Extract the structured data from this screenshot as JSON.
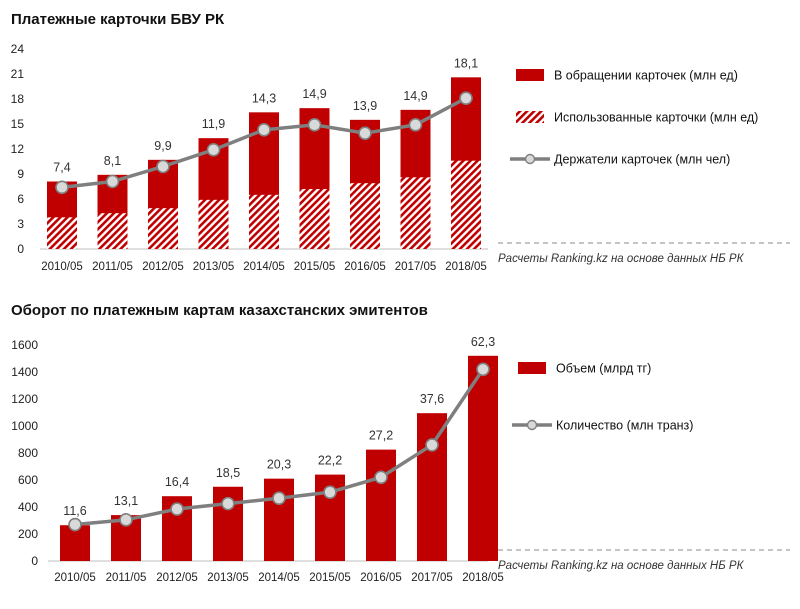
{
  "chart_data": [
    {
      "type": "bar",
      "title": "Платежные карточки БВУ РК",
      "categories": [
        "2010/05",
        "2011/05",
        "2012/05",
        "2013/05",
        "2014/05",
        "2015/05",
        "2016/05",
        "2017/05",
        "2018/05"
      ],
      "ylim": [
        0,
        24
      ],
      "yticks": [
        0,
        3,
        6,
        9,
        12,
        15,
        18,
        21,
        24
      ],
      "series": [
        {
          "name": "В обращении карточек (млн ед)",
          "kind": "bar",
          "color": "#c00000",
          "values": [
            8.1,
            8.9,
            10.7,
            13.3,
            16.4,
            16.9,
            15.5,
            16.7,
            20.6
          ]
        },
        {
          "name": "Использованные карточки (млн ед)",
          "kind": "bar-hatched",
          "color": "#c00000",
          "values": [
            3.8,
            4.3,
            4.9,
            5.9,
            6.5,
            7.2,
            7.9,
            8.6,
            10.6
          ]
        },
        {
          "name": "Держатели карточек (млн чел)",
          "kind": "line",
          "color": "#7f7f7f",
          "values": [
            7.4,
            8.1,
            9.9,
            11.9,
            14.3,
            14.9,
            13.9,
            14.9,
            18.1
          ]
        }
      ],
      "data_labels": [
        "7,4",
        "8,1",
        "9,9",
        "11,9",
        "14,3",
        "14,9",
        "13,9",
        "14,9",
        "18,1"
      ],
      "source": "Расчеты Ranking.kz на основе данных  НБ РК"
    },
    {
      "type": "bar",
      "title": "Оборот по платежным  картам казахстанских эмитентов",
      "categories": [
        "2010/05",
        "2011/05",
        "2012/05",
        "2013/05",
        "2014/05",
        "2015/05",
        "2016/05",
        "2017/05",
        "2018/05"
      ],
      "ylim": [
        0,
        1600
      ],
      "yticks": [
        0,
        200,
        400,
        600,
        800,
        1000,
        1200,
        1400,
        1600
      ],
      "series": [
        {
          "name": "Объем (млрд тг)",
          "kind": "bar",
          "color": "#c00000",
          "values": [
            265,
            340,
            480,
            550,
            610,
            640,
            825,
            1095,
            1520
          ]
        },
        {
          "name": "Количество (млн транз)",
          "kind": "line",
          "color": "#7f7f7f",
          "values": [
            270,
            305,
            385,
            425,
            465,
            510,
            620,
            860,
            1420
          ]
        }
      ],
      "data_labels": [
        "11,6",
        "13,1",
        "16,4",
        "18,5",
        "20,3",
        "22,2",
        "27,2",
        "37,6",
        "62,3"
      ],
      "source": "Расчеты Ranking.kz на основе данных  НБ РК"
    }
  ]
}
